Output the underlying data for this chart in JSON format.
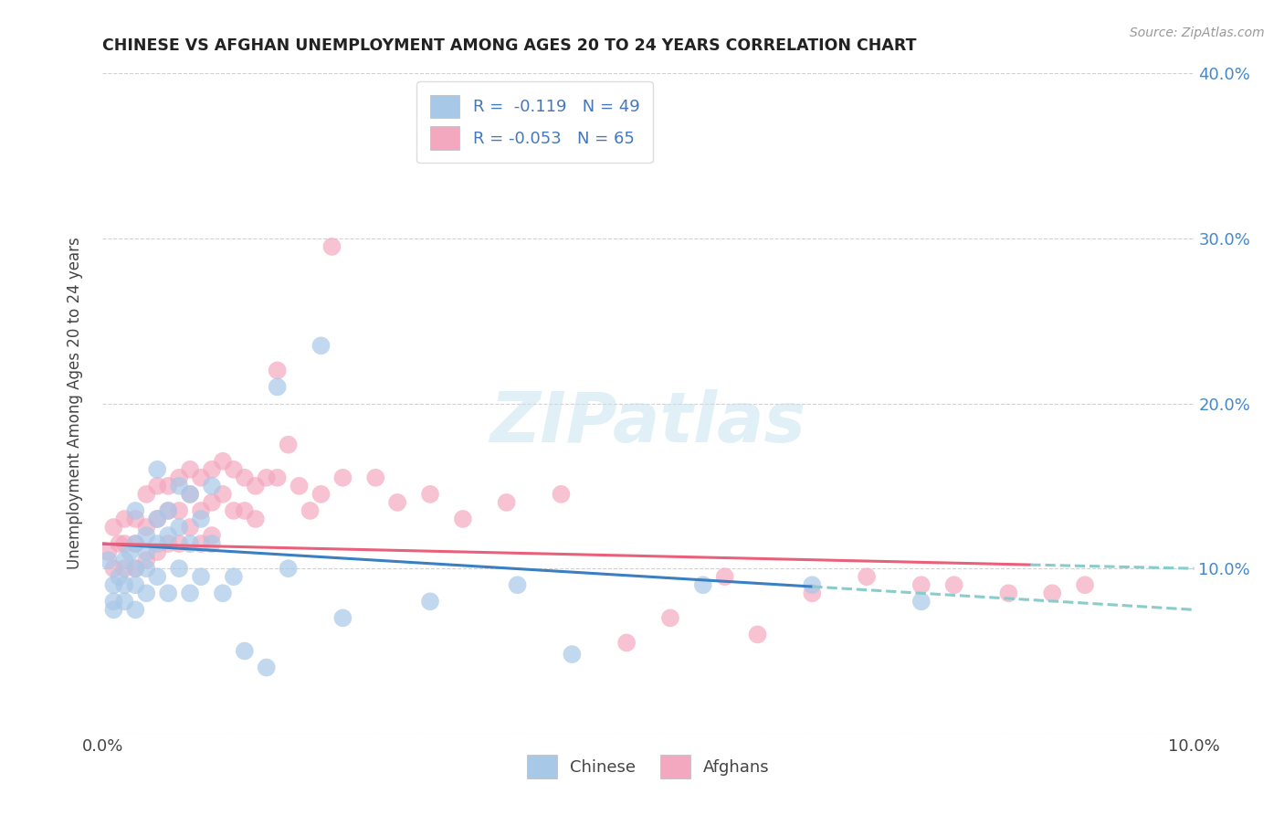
{
  "title": "CHINESE VS AFGHAN UNEMPLOYMENT AMONG AGES 20 TO 24 YEARS CORRELATION CHART",
  "source": "Source: ZipAtlas.com",
  "ylabel": "Unemployment Among Ages 20 to 24 years",
  "xlim": [
    0.0,
    0.1
  ],
  "ylim": [
    0.0,
    0.4
  ],
  "chinese_R": "-0.119",
  "chinese_N": "49",
  "afghan_R": "-0.053",
  "afghan_N": "65",
  "chinese_color": "#a8c8e8",
  "afghan_color": "#f4a8c0",
  "chinese_line_color": "#3a7fc1",
  "afghan_line_color": "#e8607a",
  "teal_dash_color": "#88cccc",
  "background_color": "#ffffff",
  "grid_color": "#cccccc",
  "title_color": "#222222",
  "label_color": "#444444",
  "right_axis_color": "#4488cc",
  "legend_text_color": "#4477bb",
  "chinese_x": [
    0.0005,
    0.001,
    0.001,
    0.001,
    0.0015,
    0.002,
    0.002,
    0.002,
    0.0025,
    0.003,
    0.003,
    0.003,
    0.003,
    0.003,
    0.004,
    0.004,
    0.004,
    0.004,
    0.005,
    0.005,
    0.005,
    0.005,
    0.006,
    0.006,
    0.006,
    0.007,
    0.007,
    0.007,
    0.008,
    0.008,
    0.008,
    0.009,
    0.009,
    0.01,
    0.01,
    0.011,
    0.012,
    0.013,
    0.015,
    0.016,
    0.017,
    0.02,
    0.022,
    0.03,
    0.038,
    0.043,
    0.055,
    0.065,
    0.075
  ],
  "chinese_y": [
    0.105,
    0.09,
    0.08,
    0.075,
    0.095,
    0.105,
    0.09,
    0.08,
    0.11,
    0.135,
    0.115,
    0.1,
    0.09,
    0.075,
    0.12,
    0.11,
    0.1,
    0.085,
    0.16,
    0.13,
    0.115,
    0.095,
    0.135,
    0.12,
    0.085,
    0.15,
    0.125,
    0.1,
    0.145,
    0.115,
    0.085,
    0.13,
    0.095,
    0.15,
    0.115,
    0.085,
    0.095,
    0.05,
    0.04,
    0.21,
    0.1,
    0.235,
    0.07,
    0.08,
    0.09,
    0.048,
    0.09,
    0.09,
    0.08
  ],
  "afghan_x": [
    0.0005,
    0.001,
    0.001,
    0.0015,
    0.002,
    0.002,
    0.002,
    0.003,
    0.003,
    0.003,
    0.004,
    0.004,
    0.004,
    0.005,
    0.005,
    0.005,
    0.006,
    0.006,
    0.006,
    0.007,
    0.007,
    0.007,
    0.008,
    0.008,
    0.008,
    0.009,
    0.009,
    0.009,
    0.01,
    0.01,
    0.01,
    0.011,
    0.011,
    0.012,
    0.012,
    0.013,
    0.013,
    0.014,
    0.014,
    0.015,
    0.016,
    0.016,
    0.017,
    0.018,
    0.019,
    0.02,
    0.021,
    0.022,
    0.025,
    0.027,
    0.03,
    0.033,
    0.037,
    0.042,
    0.048,
    0.052,
    0.057,
    0.06,
    0.065,
    0.07,
    0.075,
    0.078,
    0.083,
    0.087,
    0.09
  ],
  "afghan_y": [
    0.11,
    0.125,
    0.1,
    0.115,
    0.13,
    0.115,
    0.1,
    0.13,
    0.115,
    0.1,
    0.145,
    0.125,
    0.105,
    0.15,
    0.13,
    0.11,
    0.15,
    0.135,
    0.115,
    0.155,
    0.135,
    0.115,
    0.16,
    0.145,
    0.125,
    0.155,
    0.135,
    0.115,
    0.16,
    0.14,
    0.12,
    0.165,
    0.145,
    0.16,
    0.135,
    0.155,
    0.135,
    0.15,
    0.13,
    0.155,
    0.22,
    0.155,
    0.175,
    0.15,
    0.135,
    0.145,
    0.295,
    0.155,
    0.155,
    0.14,
    0.145,
    0.13,
    0.14,
    0.145,
    0.055,
    0.07,
    0.095,
    0.06,
    0.085,
    0.095,
    0.09,
    0.09,
    0.085,
    0.085,
    0.09
  ]
}
